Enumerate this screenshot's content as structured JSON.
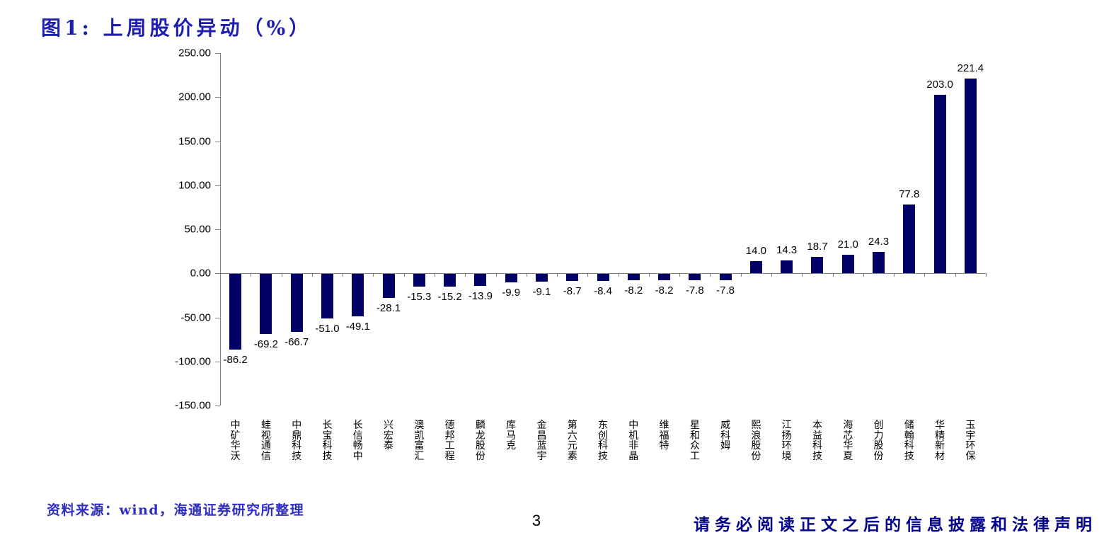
{
  "page": {
    "title": "图1: 上周股价异动（%）",
    "source_note": "资料来源：wind，海通证券研究所整理",
    "page_number": "3",
    "footer_disclaimer": "请务必阅读正文之后的信息披露和法律声明"
  },
  "colors": {
    "bar": "#000066",
    "axis": "#808080",
    "title_blue": "#1E1EAE",
    "source_blue": "#2E2EC4",
    "footer_navy": "#00008B",
    "label_text": "#000000"
  },
  "chart_data": {
    "type": "bar",
    "title": "上周股价异动（%）",
    "categories": [
      "中矿华沃",
      "蛙视通信",
      "中鼎科技",
      "长宝科技",
      "长信畅中",
      "兴宏泰",
      "澳凯富汇",
      "德邦工程",
      "麟龙股份",
      "库马克",
      "金昌蓝宇",
      "第六元素",
      "东创科技",
      "中机非晶",
      "维福特",
      "星和众工",
      "威科姆",
      "熙浪股份",
      "江扬环境",
      "本益科技",
      "海芯华夏",
      "创力股份",
      "储翰科技",
      "华精新材",
      "玉宇环保"
    ],
    "values": [
      -86.2,
      -69.2,
      -66.7,
      -51.0,
      -49.1,
      -28.1,
      -15.3,
      -15.2,
      -13.9,
      -9.9,
      -9.1,
      -8.7,
      -8.4,
      -8.2,
      -8.2,
      -7.8,
      -7.8,
      14.0,
      14.3,
      18.7,
      21.0,
      24.3,
      77.8,
      203.0,
      221.4
    ],
    "data_labels": [
      "-86.2",
      "-69.2",
      "-66.7",
      "-51.0",
      "-49.1",
      "-28.1",
      "-15.3",
      "-15.2",
      "-13.9",
      "-9.9",
      "-9.1",
      "-8.7",
      "-8.4",
      "-8.2",
      "-8.2",
      "-7.8",
      "-7.8",
      "14.0",
      "14.3",
      "18.7",
      "21.0",
      "24.3",
      "77.8",
      "203.0",
      "221.4"
    ],
    "xlabel": "",
    "ylabel": "",
    "ylim": [
      -150,
      250
    ],
    "ytick_step": 50,
    "ytick_labels": [
      "250.00",
      "200.00",
      "150.00",
      "100.00",
      "50.00",
      "0.00",
      "-50.00",
      "-100.00",
      "-150.00"
    ],
    "grid": false,
    "legend": false,
    "bar_color": "#000066"
  }
}
